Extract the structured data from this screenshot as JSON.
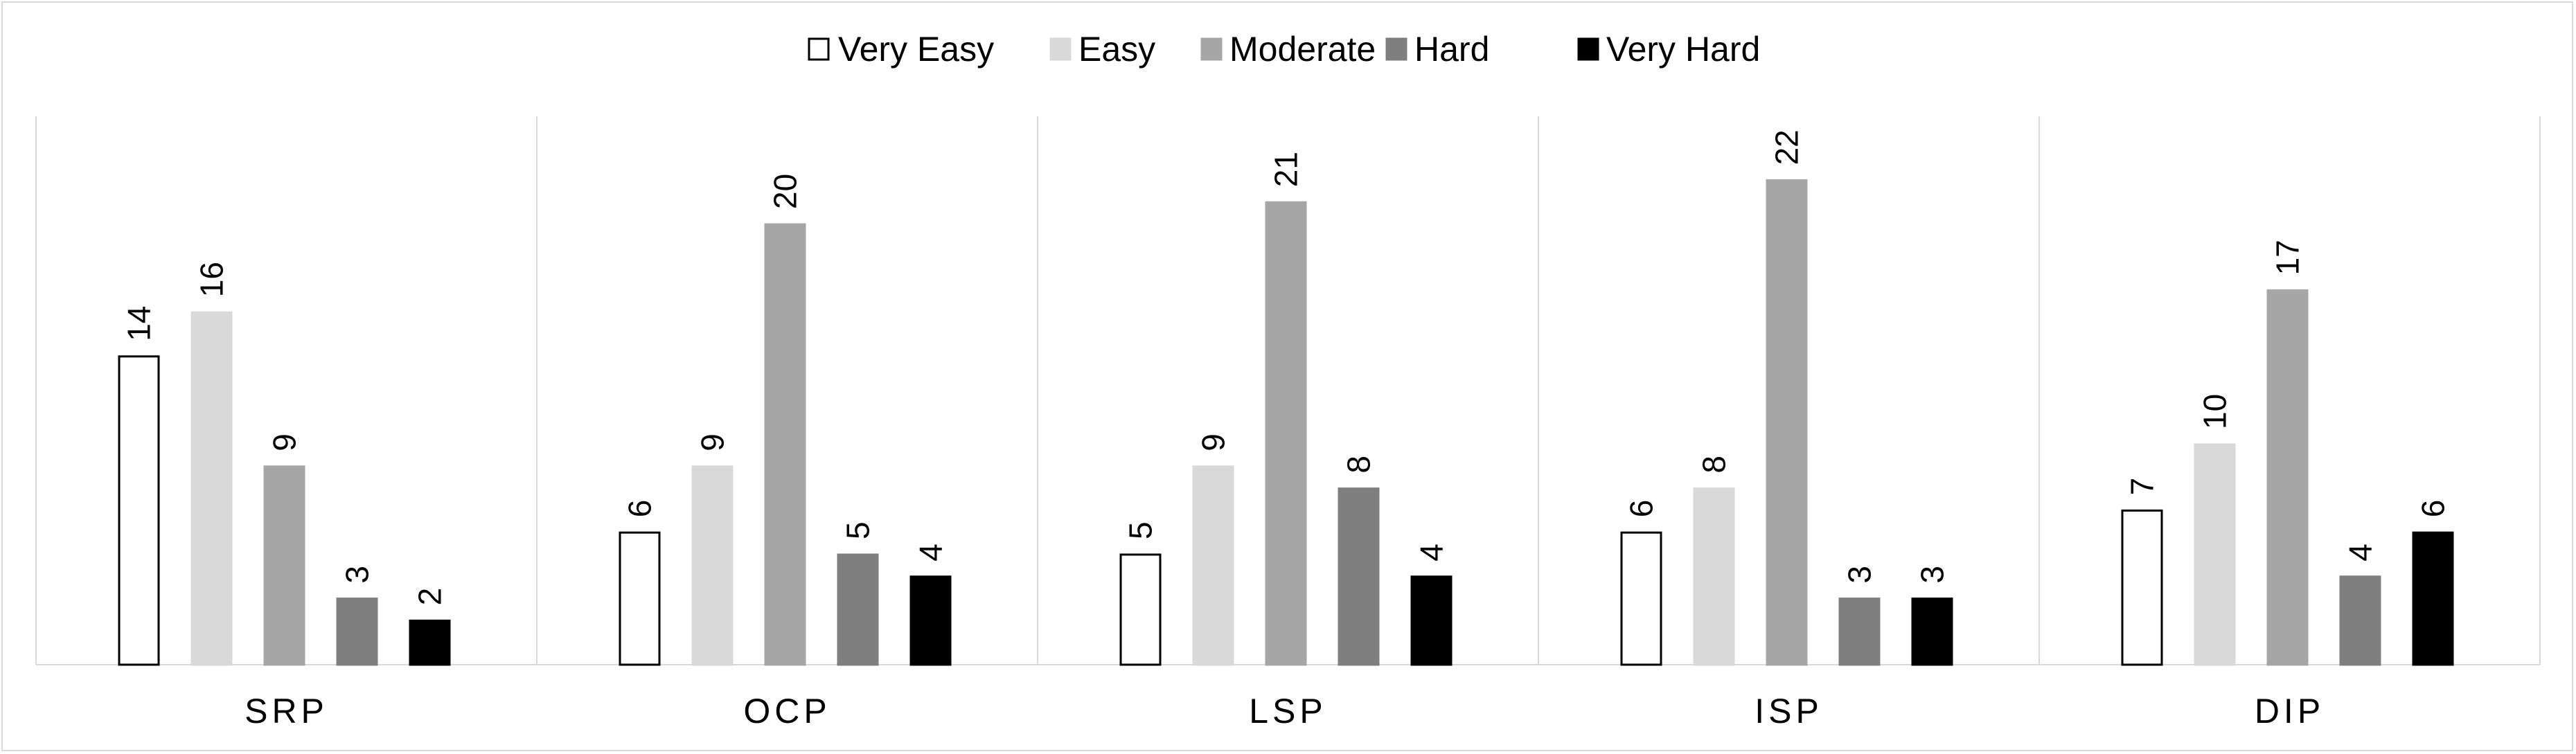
{
  "chart_data": {
    "type": "bar",
    "title": "",
    "xlabel": "",
    "ylabel": "",
    "ylim": [
      0,
      25
    ],
    "grid": false,
    "legend_position": "top",
    "categories": [
      "SRP",
      "OCP",
      "LSP",
      "ISP",
      "DIP"
    ],
    "series": [
      {
        "name": "Very Easy",
        "values": [
          14,
          6,
          5,
          6,
          7
        ],
        "color": "#ffffff",
        "stroke": "#000000"
      },
      {
        "name": "Easy",
        "values": [
          16,
          9,
          9,
          8,
          10
        ],
        "color": "#d9d9d9",
        "stroke": "#d9d9d9"
      },
      {
        "name": "Moderate",
        "values": [
          9,
          20,
          21,
          22,
          17
        ],
        "color": "#a6a6a6",
        "stroke": "#a6a6a6"
      },
      {
        "name": "Hard",
        "values": [
          3,
          5,
          8,
          3,
          4
        ],
        "color": "#7f7f7f",
        "stroke": "#7f7f7f"
      },
      {
        "name": "Very Hard",
        "values": [
          2,
          4,
          4,
          3,
          6
        ],
        "color": "#000000",
        "stroke": "#000000"
      }
    ]
  }
}
